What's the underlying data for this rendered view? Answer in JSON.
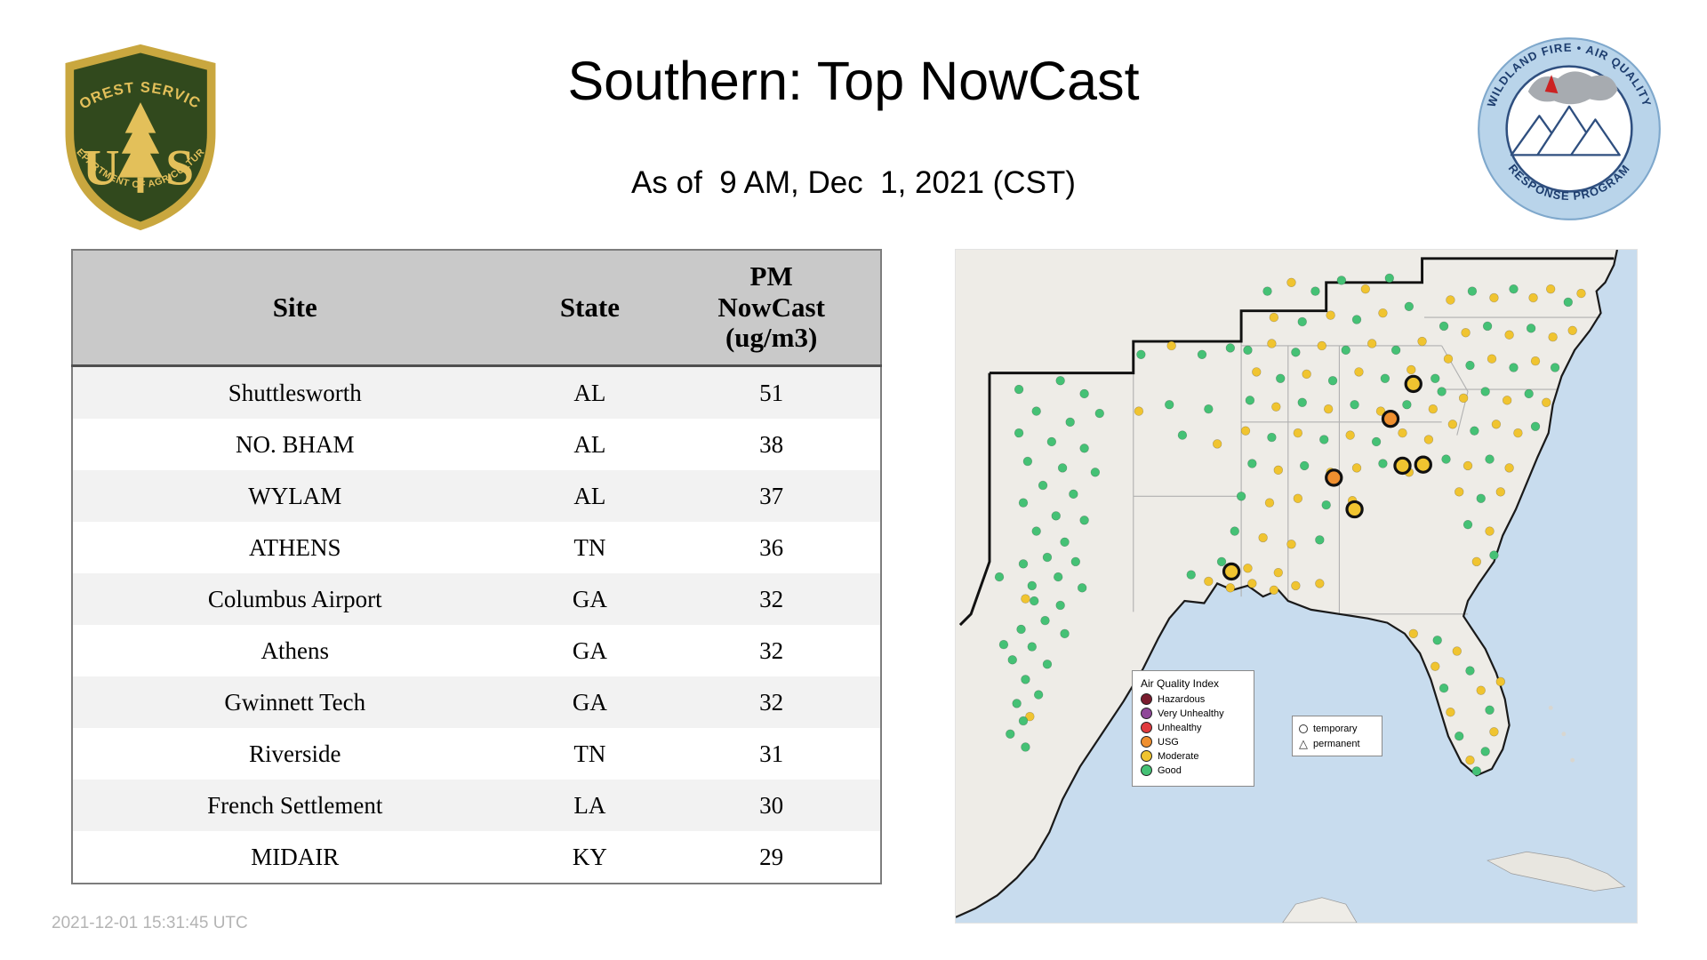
{
  "header": {
    "title": "Southern: Top NowCast",
    "subtitle": "As of  9 AM, Dec  1, 2021 (CST)"
  },
  "footer": {
    "timestamp": "2021-12-01 15:31:45 UTC"
  },
  "logos": {
    "forest_service": {
      "top": "FOREST SERVICE",
      "monogram_left": "U",
      "monogram_right": "S",
      "bottom": "DEPARTMENT OF AGRICULTURE"
    },
    "wfaqrp": {
      "top": "WILDLAND FIRE • AIR QUALITY",
      "bottom": "RESPONSE PROGRAM"
    }
  },
  "table": {
    "header": {
      "site": "Site",
      "state": "State",
      "pm_lines": [
        "PM",
        "NowCast",
        "(ug/m3)"
      ]
    },
    "rows": [
      [
        "Shuttlesworth",
        "AL",
        "51"
      ],
      [
        "NO. BHAM",
        "AL",
        "38"
      ],
      [
        "WYLAM",
        "AL",
        "37"
      ],
      [
        "ATHENS",
        "TN",
        "36"
      ],
      [
        "Columbus Airport",
        "GA",
        "32"
      ],
      [
        "Athens",
        "GA",
        "32"
      ],
      [
        "Gwinnett Tech",
        "GA",
        "32"
      ],
      [
        "Riverside",
        "TN",
        "31"
      ],
      [
        "French Settlement",
        "LA",
        "30"
      ],
      [
        "MIDAIR",
        "KY",
        "29"
      ]
    ]
  },
  "map": {
    "legend": {
      "title": "Air Quality Index",
      "items": [
        {
          "label": "Hazardous",
          "color": "#7a1c2e"
        },
        {
          "label": "Very Unhealthy",
          "color": "#8f4899"
        },
        {
          "label": "Unhealthy",
          "color": "#e03a3e"
        },
        {
          "label": "USG",
          "color": "#ef8f2f"
        },
        {
          "label": "Moderate",
          "color": "#f0c430"
        },
        {
          "label": "Good",
          "color": "#45c175"
        }
      ]
    },
    "marker_legend": {
      "items": [
        {
          "label": "temporary",
          "shape": "circle"
        },
        {
          "label": "permanent",
          "shape": "triangle"
        }
      ]
    },
    "colors": {
      "g": "#45c175",
      "y": "#f0c430",
      "o": "#ef8f2f"
    },
    "points": [
      [
        58,
        128,
        "g"
      ],
      [
        96,
        120,
        "g"
      ],
      [
        118,
        132,
        "g"
      ],
      [
        74,
        148,
        "g"
      ],
      [
        105,
        158,
        "g"
      ],
      [
        58,
        168,
        "g"
      ],
      [
        132,
        150,
        "g"
      ],
      [
        88,
        176,
        "g"
      ],
      [
        118,
        182,
        "g"
      ],
      [
        66,
        194,
        "g"
      ],
      [
        98,
        200,
        "g"
      ],
      [
        128,
        204,
        "g"
      ],
      [
        80,
        216,
        "g"
      ],
      [
        108,
        224,
        "g"
      ],
      [
        62,
        232,
        "g"
      ],
      [
        92,
        244,
        "g"
      ],
      [
        118,
        248,
        "g"
      ],
      [
        74,
        258,
        "g"
      ],
      [
        100,
        268,
        "g"
      ],
      [
        84,
        282,
        "g"
      ],
      [
        62,
        288,
        "g"
      ],
      [
        110,
        286,
        "g"
      ],
      [
        94,
        300,
        "g"
      ],
      [
        70,
        308,
        "g"
      ],
      [
        116,
        310,
        "g"
      ],
      [
        64,
        320,
        "y"
      ],
      [
        72,
        322,
        "g"
      ],
      [
        96,
        326,
        "g"
      ],
      [
        82,
        340,
        "g"
      ],
      [
        60,
        348,
        "g"
      ],
      [
        100,
        352,
        "g"
      ],
      [
        70,
        364,
        "g"
      ],
      [
        52,
        376,
        "g"
      ],
      [
        84,
        380,
        "g"
      ],
      [
        64,
        394,
        "g"
      ],
      [
        76,
        408,
        "g"
      ],
      [
        56,
        416,
        "g"
      ],
      [
        68,
        428,
        "y"
      ],
      [
        62,
        432,
        "g"
      ],
      [
        50,
        444,
        "g"
      ],
      [
        64,
        456,
        "g"
      ],
      [
        44,
        362,
        "g"
      ],
      [
        40,
        300,
        "g"
      ],
      [
        170,
        96,
        "g"
      ],
      [
        198,
        88,
        "y"
      ],
      [
        226,
        96,
        "g"
      ],
      [
        252,
        90,
        "g"
      ],
      [
        168,
        148,
        "y"
      ],
      [
        196,
        142,
        "g"
      ],
      [
        232,
        146,
        "g"
      ],
      [
        208,
        170,
        "g"
      ],
      [
        240,
        178,
        "y"
      ],
      [
        286,
        38,
        "g"
      ],
      [
        308,
        30,
        "y"
      ],
      [
        330,
        38,
        "g"
      ],
      [
        354,
        28,
        "g"
      ],
      [
        376,
        36,
        "y"
      ],
      [
        398,
        26,
        "g"
      ],
      [
        292,
        62,
        "y"
      ],
      [
        318,
        66,
        "g"
      ],
      [
        344,
        60,
        "y"
      ],
      [
        368,
        64,
        "g"
      ],
      [
        392,
        58,
        "y"
      ],
      [
        416,
        52,
        "g"
      ],
      [
        268,
        92,
        "g"
      ],
      [
        290,
        86,
        "y"
      ],
      [
        312,
        94,
        "g"
      ],
      [
        336,
        88,
        "y"
      ],
      [
        358,
        92,
        "g"
      ],
      [
        382,
        86,
        "y"
      ],
      [
        404,
        92,
        "g"
      ],
      [
        428,
        84,
        "y"
      ],
      [
        276,
        112,
        "y"
      ],
      [
        298,
        118,
        "g"
      ],
      [
        322,
        114,
        "y"
      ],
      [
        346,
        120,
        "g"
      ],
      [
        370,
        112,
        "y"
      ],
      [
        394,
        118,
        "g"
      ],
      [
        418,
        110,
        "y"
      ],
      [
        440,
        118,
        "g"
      ],
      [
        270,
        138,
        "g"
      ],
      [
        294,
        144,
        "y"
      ],
      [
        318,
        140,
        "g"
      ],
      [
        342,
        146,
        "y"
      ],
      [
        366,
        142,
        "g"
      ],
      [
        390,
        148,
        "y"
      ],
      [
        414,
        142,
        "g"
      ],
      [
        438,
        146,
        "y"
      ],
      [
        266,
        166,
        "y"
      ],
      [
        290,
        172,
        "g"
      ],
      [
        314,
        168,
        "y"
      ],
      [
        338,
        174,
        "g"
      ],
      [
        362,
        170,
        "y"
      ],
      [
        386,
        176,
        "g"
      ],
      [
        410,
        168,
        "y"
      ],
      [
        434,
        174,
        "y"
      ],
      [
        272,
        196,
        "g"
      ],
      [
        296,
        202,
        "y"
      ],
      [
        320,
        198,
        "g"
      ],
      [
        344,
        204,
        "y"
      ],
      [
        368,
        200,
        "y"
      ],
      [
        392,
        196,
        "g"
      ],
      [
        416,
        204,
        "y"
      ],
      [
        262,
        226,
        "g"
      ],
      [
        288,
        232,
        "y"
      ],
      [
        314,
        228,
        "y"
      ],
      [
        340,
        234,
        "g"
      ],
      [
        364,
        230,
        "y"
      ],
      [
        256,
        258,
        "g"
      ],
      [
        282,
        264,
        "y"
      ],
      [
        308,
        270,
        "y"
      ],
      [
        334,
        266,
        "g"
      ],
      [
        244,
        286,
        "g"
      ],
      [
        268,
        292,
        "y"
      ],
      [
        296,
        296,
        "y"
      ],
      [
        454,
        46,
        "y"
      ],
      [
        474,
        38,
        "g"
      ],
      [
        494,
        44,
        "y"
      ],
      [
        512,
        36,
        "g"
      ],
      [
        530,
        44,
        "y"
      ],
      [
        546,
        36,
        "y"
      ],
      [
        562,
        48,
        "g"
      ],
      [
        574,
        40,
        "y"
      ],
      [
        448,
        70,
        "g"
      ],
      [
        468,
        76,
        "y"
      ],
      [
        488,
        70,
        "g"
      ],
      [
        508,
        78,
        "y"
      ],
      [
        528,
        72,
        "g"
      ],
      [
        548,
        80,
        "y"
      ],
      [
        566,
        74,
        "y"
      ],
      [
        452,
        100,
        "y"
      ],
      [
        472,
        106,
        "g"
      ],
      [
        492,
        100,
        "y"
      ],
      [
        512,
        108,
        "g"
      ],
      [
        532,
        102,
        "y"
      ],
      [
        550,
        108,
        "g"
      ],
      [
        446,
        130,
        "g"
      ],
      [
        466,
        136,
        "y"
      ],
      [
        486,
        130,
        "g"
      ],
      [
        506,
        138,
        "y"
      ],
      [
        526,
        132,
        "g"
      ],
      [
        542,
        140,
        "y"
      ],
      [
        456,
        160,
        "y"
      ],
      [
        476,
        166,
        "g"
      ],
      [
        496,
        160,
        "y"
      ],
      [
        516,
        168,
        "y"
      ],
      [
        532,
        162,
        "g"
      ],
      [
        450,
        192,
        "g"
      ],
      [
        470,
        198,
        "y"
      ],
      [
        490,
        192,
        "g"
      ],
      [
        508,
        200,
        "y"
      ],
      [
        462,
        222,
        "y"
      ],
      [
        482,
        228,
        "g"
      ],
      [
        500,
        222,
        "y"
      ],
      [
        470,
        252,
        "g"
      ],
      [
        490,
        258,
        "y"
      ],
      [
        478,
        286,
        "y"
      ],
      [
        494,
        280,
        "g"
      ],
      [
        420,
        352,
        "y"
      ],
      [
        442,
        358,
        "g"
      ],
      [
        460,
        368,
        "y"
      ],
      [
        472,
        386,
        "g"
      ],
      [
        482,
        404,
        "y"
      ],
      [
        490,
        422,
        "g"
      ],
      [
        494,
        442,
        "y"
      ],
      [
        486,
        460,
        "g"
      ],
      [
        472,
        468,
        "y"
      ],
      [
        462,
        446,
        "g"
      ],
      [
        454,
        424,
        "y"
      ],
      [
        448,
        402,
        "g"
      ],
      [
        440,
        382,
        "y"
      ],
      [
        500,
        396,
        "y"
      ],
      [
        478,
        478,
        "g"
      ],
      [
        232,
        304,
        "y"
      ],
      [
        252,
        310,
        "y"
      ],
      [
        272,
        306,
        "y"
      ],
      [
        292,
        312,
        "y"
      ],
      [
        312,
        308,
        "y"
      ],
      [
        216,
        298,
        "g"
      ],
      [
        334,
        306,
        "y"
      ]
    ],
    "highlights": [
      [
        420,
        123,
        "y"
      ],
      [
        399,
        155,
        "o"
      ],
      [
        410,
        198,
        "y"
      ],
      [
        429,
        197,
        "y"
      ],
      [
        347,
        209,
        "o"
      ],
      [
        366,
        238,
        "y"
      ],
      [
        253,
        295,
        "y"
      ]
    ]
  }
}
